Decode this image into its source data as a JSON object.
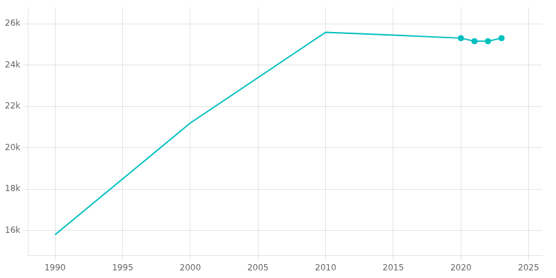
{
  "chart_data": {
    "type": "line",
    "x": [
      1990,
      2000,
      2010,
      2015,
      2020,
      2021,
      2022,
      2023
    ],
    "series": [
      {
        "values": [
          15800,
          21200,
          25580,
          25450,
          25300,
          25150,
          25150,
          25300
        ],
        "color": "#00BFBF",
        "line_style": "solid"
      },
      {
        "type": "scatter",
        "x": [
          2020,
          2021,
          2022,
          2023
        ],
        "values": [
          25300,
          25150,
          25150,
          25300
        ],
        "color": "#00BFBF",
        "marker": "circle"
      }
    ],
    "xlim": [
      1988,
      2026
    ],
    "ylim": [
      14800,
      26800
    ],
    "xticks": [
      1990,
      1995,
      2000,
      2005,
      2010,
      2015,
      2020,
      2025
    ],
    "yticks": [
      {
        "value": 16000,
        "label": "16k"
      },
      {
        "value": 18000,
        "label": "18k"
      },
      {
        "value": 20000,
        "label": "20k"
      },
      {
        "value": 22000,
        "label": "22k"
      },
      {
        "value": 24000,
        "label": "24k"
      },
      {
        "value": 26000,
        "label": "26k"
      }
    ],
    "grid": true
  }
}
